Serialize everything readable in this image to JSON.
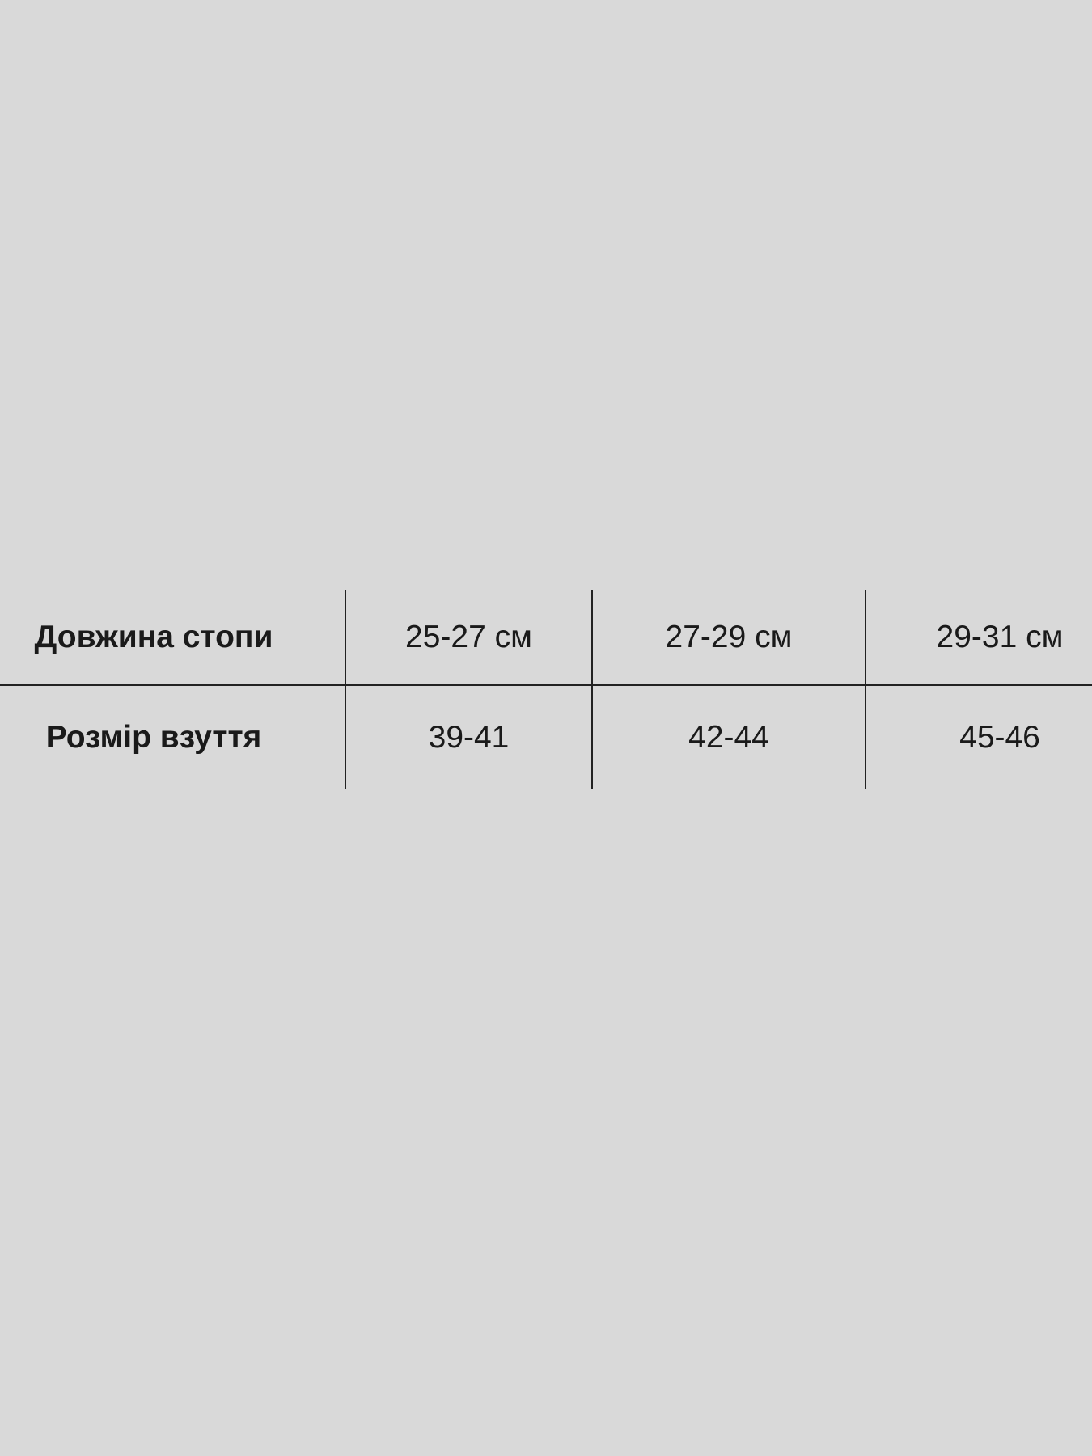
{
  "table": {
    "rows": [
      {
        "label": "Довжина стопи",
        "values": [
          "25-27 см",
          "27-29 см",
          "29-31 см"
        ]
      },
      {
        "label": "Розмір взуття",
        "values": [
          "39-41",
          "42-44",
          "45-46"
        ]
      }
    ]
  },
  "colors": {
    "background": "#d9d9d9",
    "lines": "#222222",
    "text": "#1a1a1a"
  }
}
